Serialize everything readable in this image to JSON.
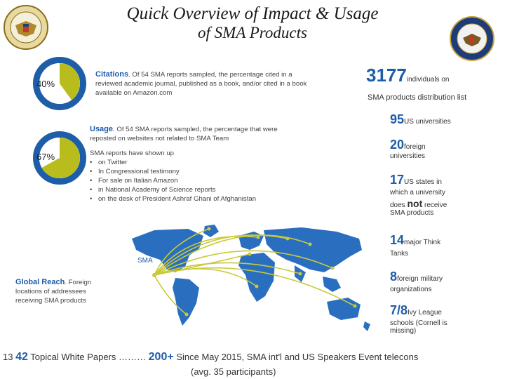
{
  "title": {
    "line1": "Quick Overview of Impact & Usage",
    "line2": "of SMA Products"
  },
  "donuts": [
    {
      "label": "40%",
      "fraction": 0.4,
      "fill_color": "#b8bd1d",
      "ring_color": "#1e5da8"
    },
    {
      "label": "67%",
      "fraction": 0.67,
      "fill_color": "#b8bd1d",
      "ring_color": "#1e5da8"
    }
  ],
  "citations": {
    "heading": "Citations",
    "text": ". Of 54 SMA reports sampled, the percentage cited in a reviewed academic journal, published as a book, and/or cited in a book available on Amazon.com"
  },
  "usage": {
    "heading": "Usage",
    "text": ". Of 54 SMA reports sampled, the percentage that were reposted on websites not related to SMA Team",
    "list_intro": "SMA reports have shown up",
    "items": [
      "on Twitter",
      "In Congressional testimony",
      "For sale on Italian Amazon",
      "in National Academy of Science reports",
      "on the desk of President Ashraf Ghani of Afghanistan"
    ]
  },
  "global_reach": {
    "heading": "Global Reach",
    "text": ". Foreign locations of addressees receiving SMA products",
    "map_label": "SMA"
  },
  "stats": {
    "distribution": {
      "number": "3177",
      "text1": "individuals on",
      "text2": "SMA products distribution list"
    },
    "us_universities": {
      "number": "95",
      "text": "US universities"
    },
    "foreign_universities": {
      "number": "20",
      "text1": "foreign",
      "text2": "universities"
    },
    "us_states": {
      "number": "17",
      "text1": "US states in",
      "text2": "which a university",
      "text3": "does",
      "not_word": "not",
      "text4": "receive",
      "text5": "SMA products"
    },
    "think_tanks": {
      "number": "14",
      "text1": "major Think",
      "text2": "Tanks"
    },
    "foreign_military": {
      "number": "8",
      "text1": "foreign military",
      "text2": "organizations"
    },
    "ivy_league": {
      "number": "7/8",
      "text1": "Ivy League",
      "text2": "schools (Cornell is",
      "text3": "missing)"
    }
  },
  "bottom": {
    "page_number": "13",
    "white_papers_number": "42",
    "white_papers_text": "Topical White Papers",
    "dots": "………",
    "speakers_number": "200+",
    "speakers_text": "Since May 2015, SMA int'l and US Speakers Event telecons",
    "participants": "(avg. 35 participants)"
  },
  "colors": {
    "accent": "#1e5da8",
    "olive": "#b8bd1d",
    "map_blue": "#2a6fbf",
    "arc": "#c9c93a"
  }
}
